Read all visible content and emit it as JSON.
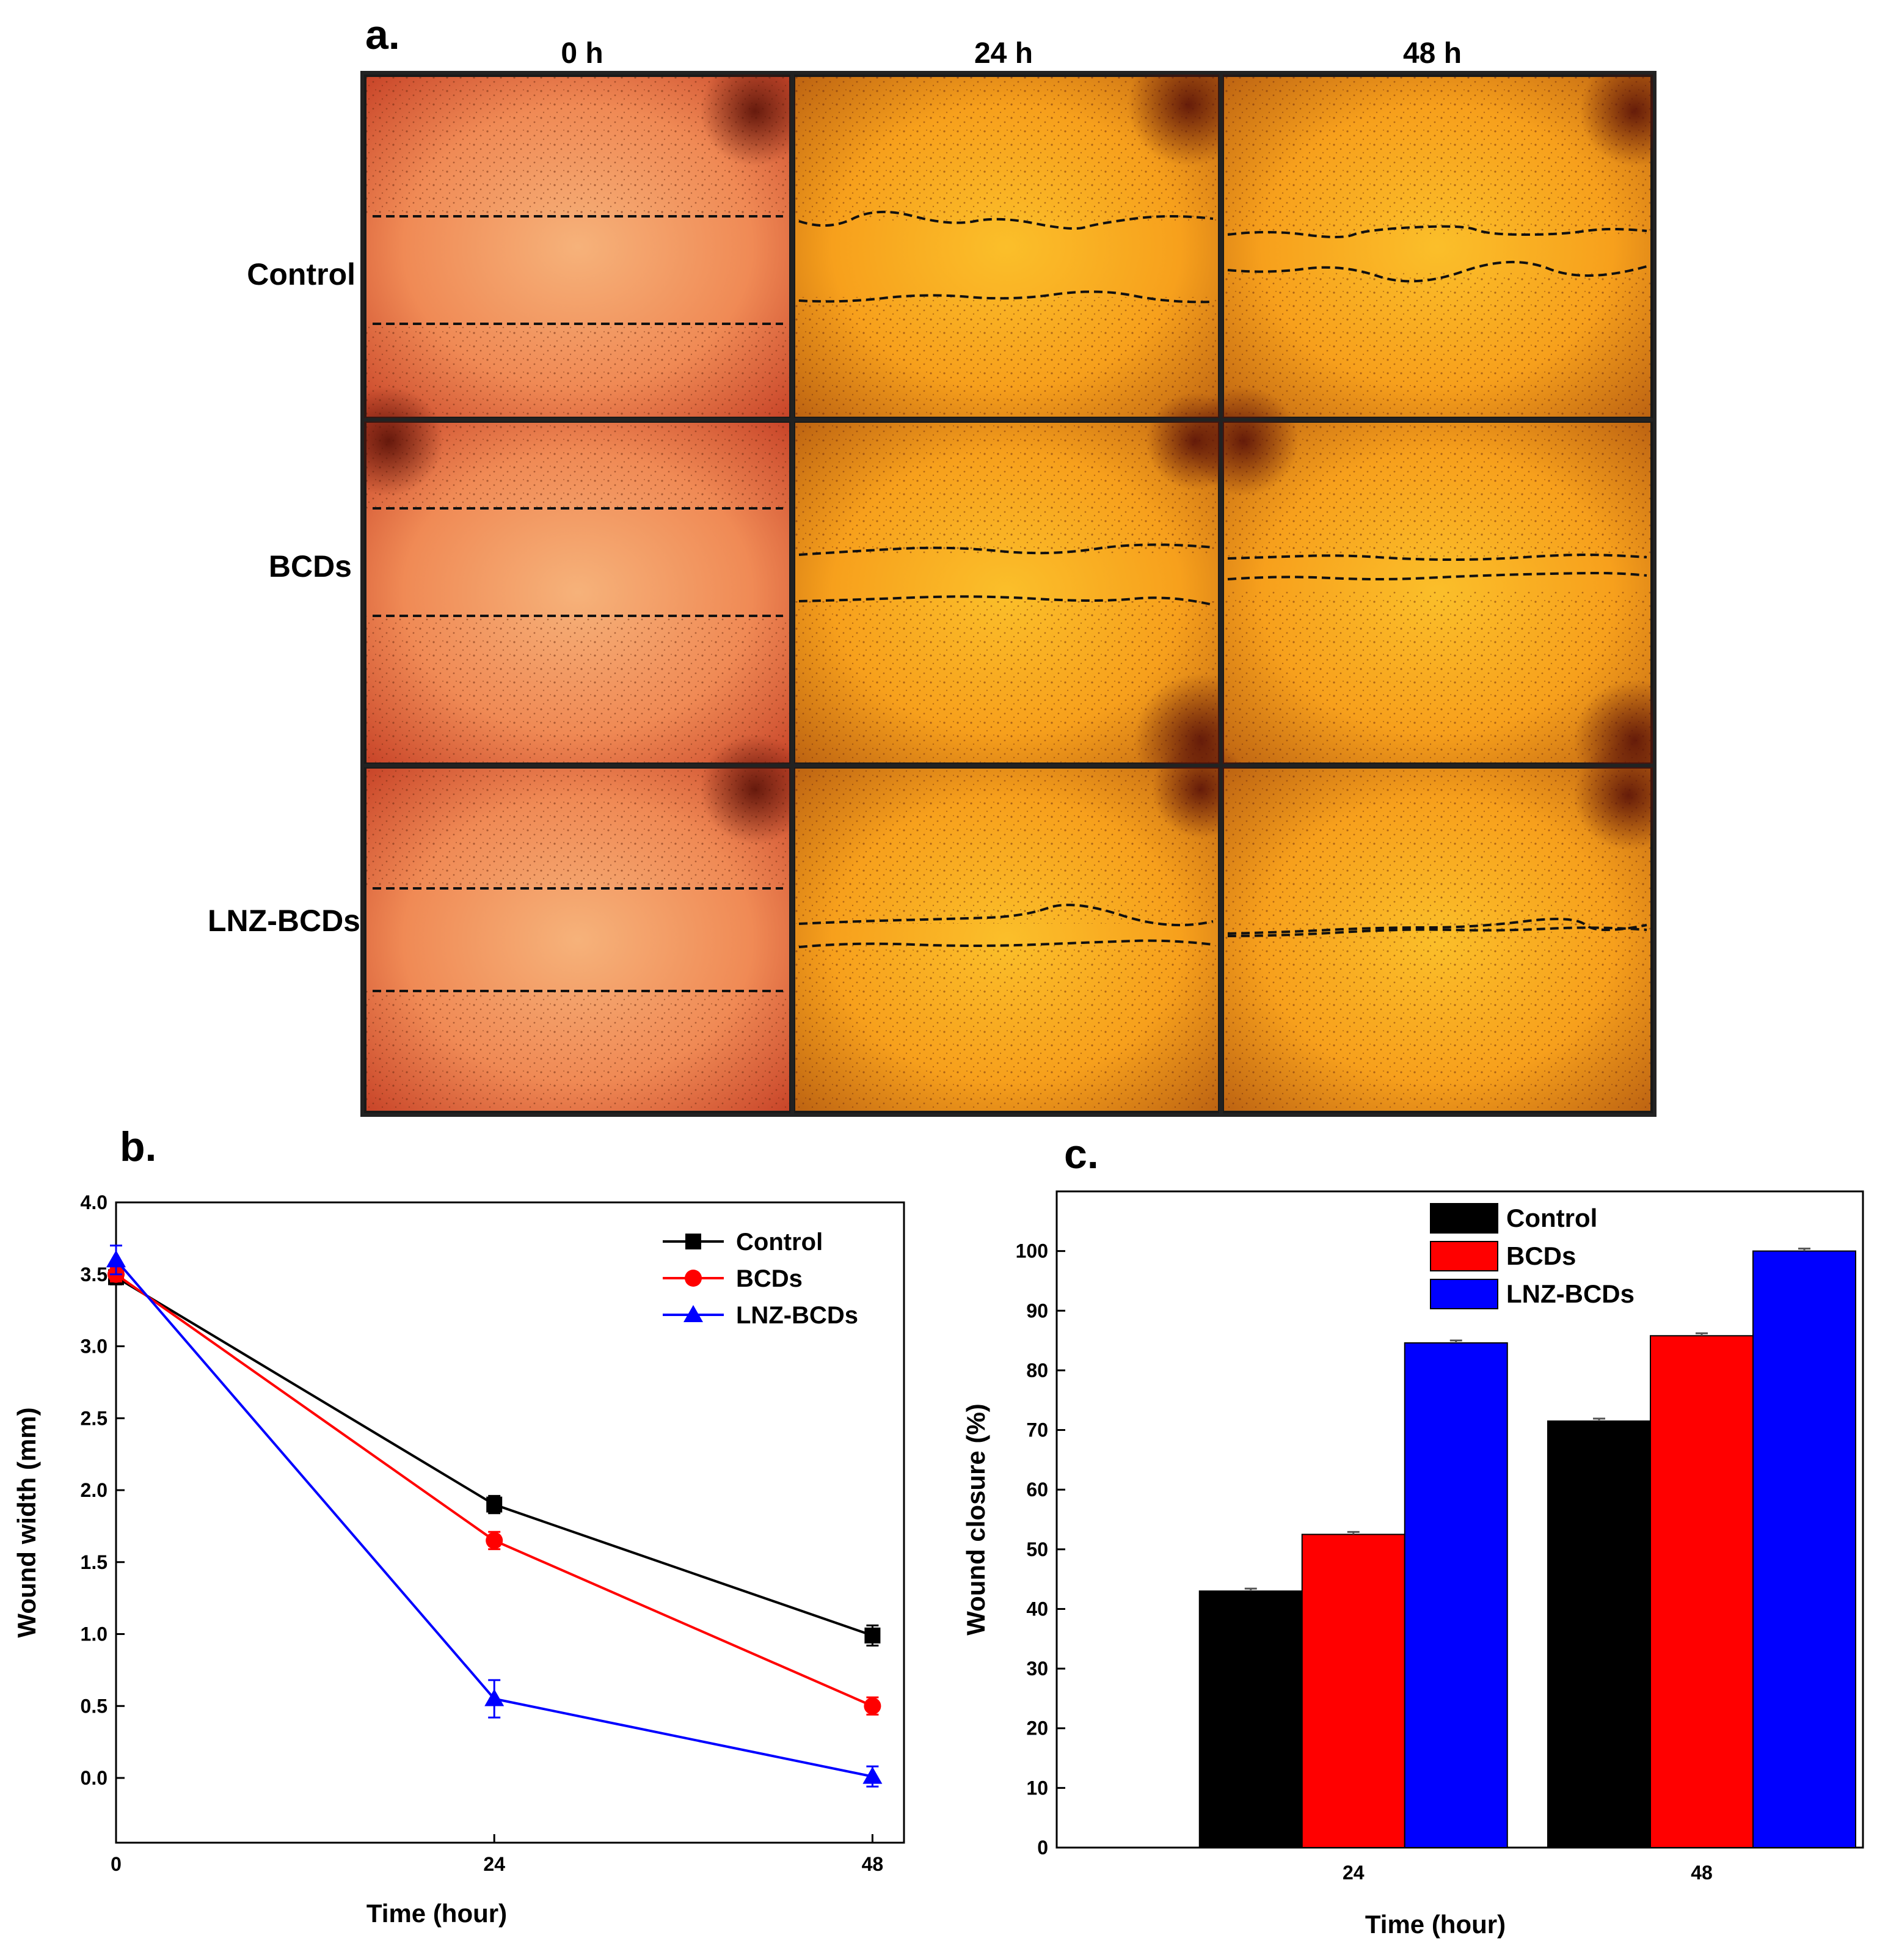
{
  "figure": {
    "panel_a_label": "a.",
    "panel_b_label": "b.",
    "panel_c_label": "c.",
    "columns": [
      "0 h",
      "24 h",
      "48 h"
    ],
    "rows": [
      "Control",
      "BCDs",
      "LNZ-BCDs"
    ],
    "colors": {
      "control": "#000000",
      "bcds": "#ff0000",
      "lnz": "#0000ff",
      "cell_edge": "#d9472f",
      "cell_mid": "#f7a01c",
      "cell_core": "#fbbf2a"
    }
  },
  "chart_data": [
    {
      "type": "line",
      "title": "",
      "xlabel": "Time (hour)",
      "ylabel": "Wound width (mm)",
      "x": [
        0,
        24,
        48
      ],
      "xticks": [
        "0",
        "24",
        "48"
      ],
      "yticks": [
        "0.0",
        "0.5",
        "1.0",
        "1.5",
        "2.0",
        "2.5",
        "3.0",
        "3.5",
        "4.0"
      ],
      "xlim": [
        0,
        50
      ],
      "ylim": [
        -0.45,
        4.0
      ],
      "series": [
        {
          "name": "Control",
          "values": [
            3.48,
            1.9,
            0.99
          ],
          "errors": [
            0.05,
            0.06,
            0.07
          ],
          "color": "#000000",
          "marker": "square"
        },
        {
          "name": "BCDs",
          "values": [
            3.5,
            1.65,
            0.5
          ],
          "errors": [
            0.05,
            0.06,
            0.06
          ],
          "color": "#ff0000",
          "marker": "circle"
        },
        {
          "name": "LNZ-BCDs",
          "values": [
            3.6,
            0.55,
            0.01
          ],
          "errors": [
            0.1,
            0.13,
            0.07
          ],
          "color": "#0000ff",
          "marker": "triangle"
        }
      ],
      "legend": "top-right"
    },
    {
      "type": "bar",
      "title": "",
      "xlabel": "Time (hour)",
      "ylabel": "Wound closure (%)",
      "categories": [
        "24",
        "48"
      ],
      "yticks": [
        "0",
        "10",
        "20",
        "30",
        "40",
        "50",
        "60",
        "70",
        "80",
        "90",
        "100"
      ],
      "ylim": [
        0,
        110
      ],
      "series": [
        {
          "name": "Control",
          "values": [
            43.0,
            71.5
          ],
          "color": "#000000"
        },
        {
          "name": "BCDs",
          "values": [
            52.5,
            85.8
          ],
          "color": "#ff0000"
        },
        {
          "name": "LNZ-BCDs",
          "values": [
            84.6,
            100.0
          ],
          "color": "#0000ff"
        }
      ],
      "legend": "top-center"
    }
  ]
}
